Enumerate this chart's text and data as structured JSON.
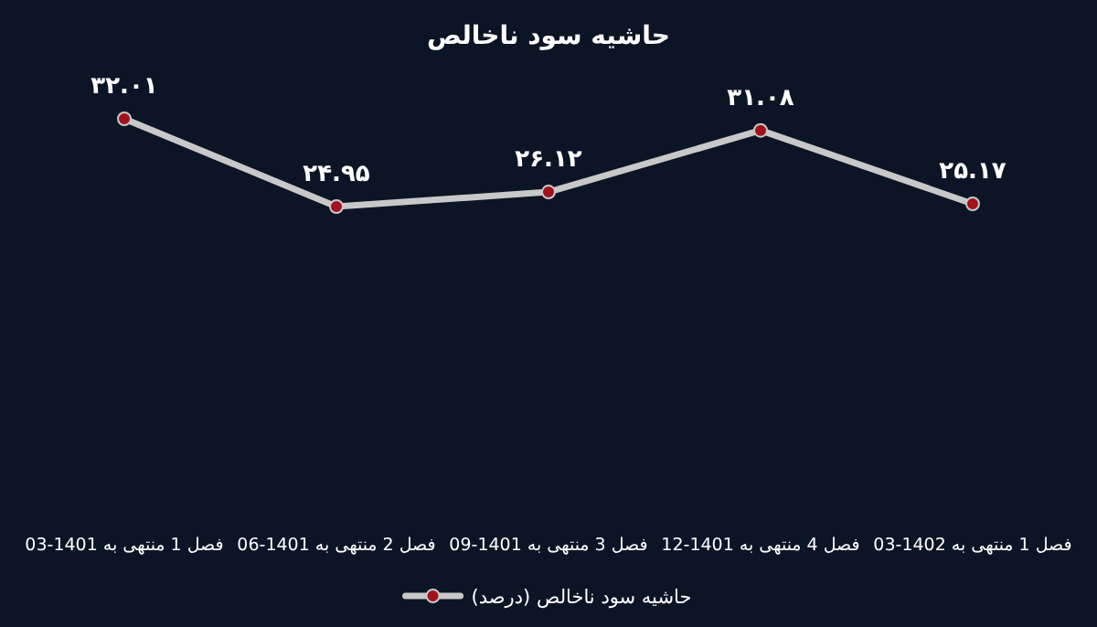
{
  "chart_data": {
    "type": "line",
    "title": "حاشیه سود ناخالص",
    "categories": [
      "فصل 1 منتهی به 1401-03",
      "فصل 2 منتهی به 1401-06",
      "فصل 3 منتهی به 1401-09",
      "فصل 4 منتهی به 1401-12",
      "فصل 1 منتهی به 1402-03"
    ],
    "series": [
      {
        "name": "حاشیه سود ناخالص (درصد)",
        "color": "#c8c8c8",
        "colors": [
          "#a0121c",
          "#a0121c",
          "#a0121c",
          "#a0121c",
          "#a0121c"
        ],
        "values": [
          32.01,
          24.95,
          26.12,
          31.08,
          25.17
        ],
        "value_labels": [
          "۳۲.۰۱",
          "۲۴.۹۵",
          "۲۶.۱۲",
          "۳۱.۰۸",
          "۲۵.۱۷"
        ]
      }
    ],
    "marker": "circle",
    "legend": "bottom",
    "grid": false
  }
}
